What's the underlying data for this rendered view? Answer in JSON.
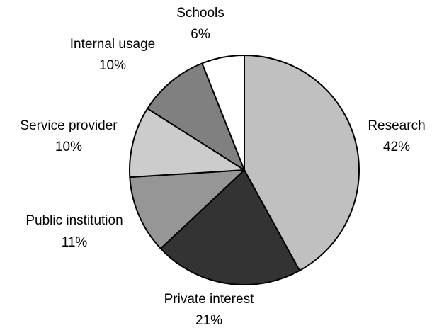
{
  "chart_data": {
    "type": "pie",
    "start": "12 o'clock",
    "direction": "clockwise",
    "slices": [
      {
        "label": "Research",
        "value": 42,
        "value_label": "42%",
        "color": "#c0c0c0"
      },
      {
        "label": "Private interest",
        "value": 21,
        "value_label": "21%",
        "color": "#333333"
      },
      {
        "label": "Public institution",
        "value": 11,
        "value_label": "11%",
        "color": "#969696"
      },
      {
        "label": "Service provider",
        "value": 10,
        "value_label": "10%",
        "color": "#cccccc"
      },
      {
        "label": "Internal usage",
        "value": 10,
        "value_label": "10%",
        "color": "#808080"
      },
      {
        "label": "Schools",
        "value": 6,
        "value_label": "6%",
        "color": "#ffffff"
      }
    ],
    "outline_color": "#000000"
  }
}
